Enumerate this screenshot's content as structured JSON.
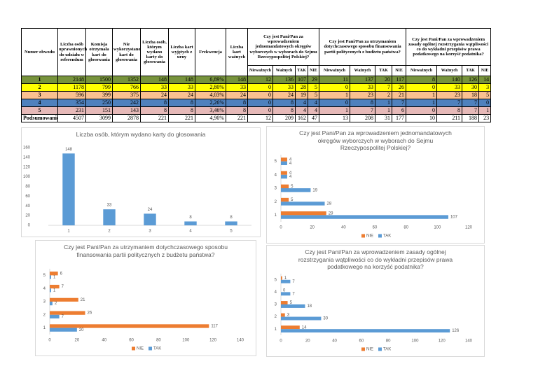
{
  "table": {
    "columns": [
      "Numer obwodu",
      "Liczba osób uprawnionych do udziału w referendum",
      "Komisja otrzymała kart do głosowania",
      "Nie wykorzystano kart do głosowania",
      "Liczba osób, którym wydano karty do głosowania",
      "Liczba kart wyjętych z urny",
      "Frekwencja",
      "Liczba kart ważnych"
    ],
    "questions": [
      "Czy jest Pani/Pan za wprowadzeniem jednomandatowych okręgów wyborczych w wyborach do Sejmu Rzeczypospolitej Polskiej?",
      "Czy jest Pani/Pan za utrzymaniem dotychczasowego sposobu finansowania partii politycznych z budżetu państwa?",
      "Czy jest Pani/Pan za wprowadzeniem zasady ogólnej rozstrzygania wątpliwości co do wykładni przepisów prawa podatkowego na korzyść podatnika?"
    ],
    "subcolumns": [
      [
        "Nieważnych",
        "Ważnych",
        "TAK",
        "NIE"
      ],
      [
        "Nieważnych",
        "Ważnych",
        "TAK",
        "NIE"
      ],
      [
        "Nieważnych",
        "Ważnych",
        "TAK",
        "NIE"
      ]
    ],
    "rows": [
      [
        "1",
        2148,
        1500,
        1352,
        148,
        148,
        "6,89%",
        148,
        12,
        136,
        107,
        29,
        11,
        137,
        20,
        117,
        8,
        140,
        126,
        14
      ],
      [
        "2",
        1178,
        799,
        766,
        33,
        33,
        "2,80%",
        33,
        0,
        33,
        28,
        5,
        0,
        33,
        7,
        26,
        0,
        33,
        30,
        3
      ],
      [
        "3",
        596,
        399,
        375,
        24,
        24,
        "4,03%",
        24,
        0,
        24,
        19,
        5,
        1,
        23,
        2,
        21,
        1,
        23,
        18,
        5
      ],
      [
        "4",
        354,
        250,
        242,
        8,
        8,
        "2,26%",
        8,
        0,
        8,
        4,
        4,
        0,
        8,
        1,
        7,
        1,
        7,
        7,
        0
      ],
      [
        "5",
        231,
        151,
        143,
        8,
        8,
        "3,46%",
        8,
        0,
        8,
        4,
        4,
        1,
        7,
        1,
        6,
        0,
        8,
        7,
        1
      ],
      [
        "Podsumowanie",
        4507,
        3099,
        2878,
        221,
        221,
        "4,90%",
        221,
        12,
        209,
        162,
        47,
        13,
        208,
        31,
        177,
        10,
        211,
        188,
        23
      ]
    ],
    "row_colors": [
      "#77933c",
      "#ffff00",
      "#fac090",
      "#4f81bd",
      "#e6b9b8",
      "#ffffff"
    ]
  },
  "chart_data": [
    {
      "type": "bar",
      "title": "Liczba osób, którym wydano karty do głosowania",
      "categories": [
        "1",
        "2",
        "3",
        "4",
        "5"
      ],
      "values": [
        148,
        33,
        24,
        8,
        8
      ],
      "color": "#5b9bd5",
      "ylim": [
        0,
        160
      ],
      "yticks": [
        0,
        20,
        40,
        60,
        80,
        100,
        120,
        140,
        160
      ],
      "grid": false
    },
    {
      "type": "barh",
      "title": "Czy jest Pani/Pan za wprowadzeniem jednomandatowych okręgów wyborczych w wyborach do Sejmu Rzeczypospolitej Polskiej?",
      "categories": [
        "1",
        "2",
        "3",
        "4",
        "5"
      ],
      "series": [
        {
          "name": "NIE",
          "color": "#ed7d31",
          "values": [
            29,
            5,
            5,
            4,
            4
          ]
        },
        {
          "name": "TAK",
          "color": "#5b9bd5",
          "values": [
            107,
            28,
            19,
            4,
            4
          ]
        }
      ],
      "xlim": [
        0,
        120
      ],
      "xticks": [
        0,
        20,
        40,
        60,
        80,
        100,
        120
      ],
      "legend": "bottom"
    },
    {
      "type": "barh",
      "title": "Czy jest Pani/Pan za utrzymaniem dotychczasowego sposobu finansowania partii politycznych z budżetu państwa?",
      "categories": [
        "1",
        "2",
        "3",
        "4",
        "5"
      ],
      "series": [
        {
          "name": "NIE",
          "color": "#ed7d31",
          "values": [
            117,
            26,
            21,
            7,
            6
          ]
        },
        {
          "name": "TAK",
          "color": "#5b9bd5",
          "values": [
            20,
            7,
            2,
            1,
            1
          ]
        }
      ],
      "xlim": [
        0,
        140
      ],
      "xticks": [
        0,
        20,
        40,
        60,
        80,
        100,
        120,
        140
      ],
      "legend": "bottom"
    },
    {
      "type": "barh",
      "title": "Czy jest Pani/Pan za wprowadzeniem zasady ogólnej rozstrzygania wątpliwości co do wykładni przepisów prawa podatkowego na korzyść podatnika?",
      "categories": [
        "1",
        "2",
        "3",
        "4",
        "5"
      ],
      "series": [
        {
          "name": "NIE",
          "color": "#ed7d31",
          "values": [
            14,
            3,
            5,
            0,
            1
          ]
        },
        {
          "name": "TAK",
          "color": "#5b9bd5",
          "values": [
            126,
            30,
            18,
            7,
            7
          ]
        }
      ],
      "xlim": [
        0,
        140
      ],
      "xticks": [
        0,
        20,
        40,
        60,
        80,
        100,
        120,
        140
      ],
      "legend": "bottom"
    }
  ]
}
